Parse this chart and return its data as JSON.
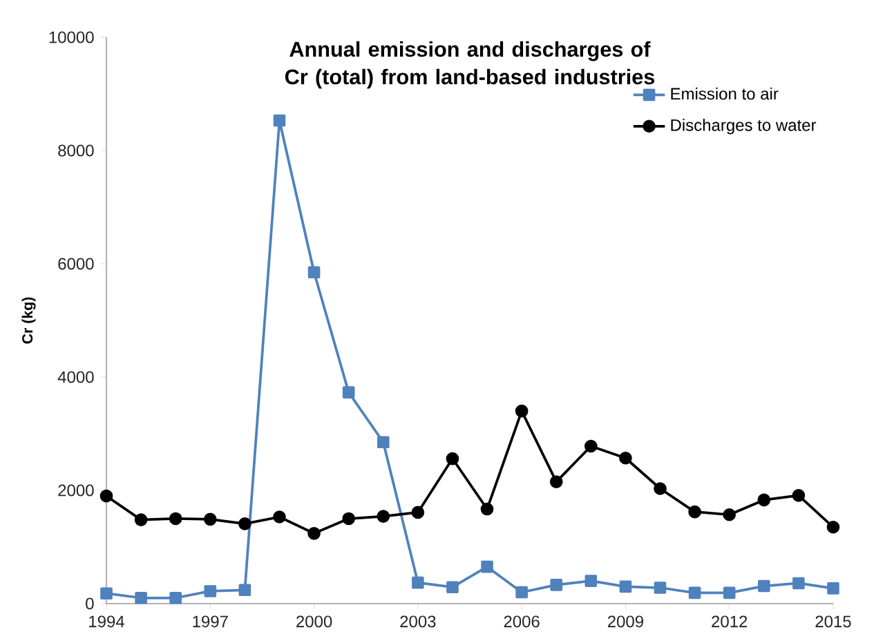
{
  "chart_data": {
    "type": "line",
    "title": "Annual emission and discharges of Cr (total) from land-based industries",
    "ylabel": "Cr (kg)",
    "x": [
      1994,
      1995,
      1996,
      1997,
      1998,
      1999,
      2000,
      2001,
      2002,
      2003,
      2004,
      2005,
      2006,
      2007,
      2008,
      2009,
      2010,
      2011,
      2012,
      2013,
      2014,
      2015
    ],
    "series": [
      {
        "name": "Emission to air",
        "color": "#4f81bd",
        "marker": "square",
        "values": [
          180,
          100,
          100,
          220,
          240,
          8530,
          5850,
          3730,
          2850,
          370,
          290,
          650,
          200,
          330,
          400,
          300,
          280,
          190,
          190,
          310,
          360,
          270
        ]
      },
      {
        "name": "Discharges to water",
        "color": "#000000",
        "marker": "circle",
        "values": [
          1900,
          1480,
          1500,
          1490,
          1410,
          1530,
          1240,
          1500,
          1540,
          1610,
          2560,
          1670,
          3400,
          2150,
          2780,
          2570,
          2030,
          1620,
          1570,
          1830,
          1910,
          1350
        ]
      }
    ],
    "xlim": [
      1994,
      2015
    ],
    "xticks": [
      1994,
      1997,
      2000,
      2003,
      2006,
      2009,
      2012,
      2015
    ],
    "ylim": [
      0,
      10000
    ],
    "yticks": [
      0,
      2000,
      4000,
      6000,
      8000,
      10000
    ],
    "grid": false,
    "legend": "top right",
    "line_style": "solid"
  }
}
